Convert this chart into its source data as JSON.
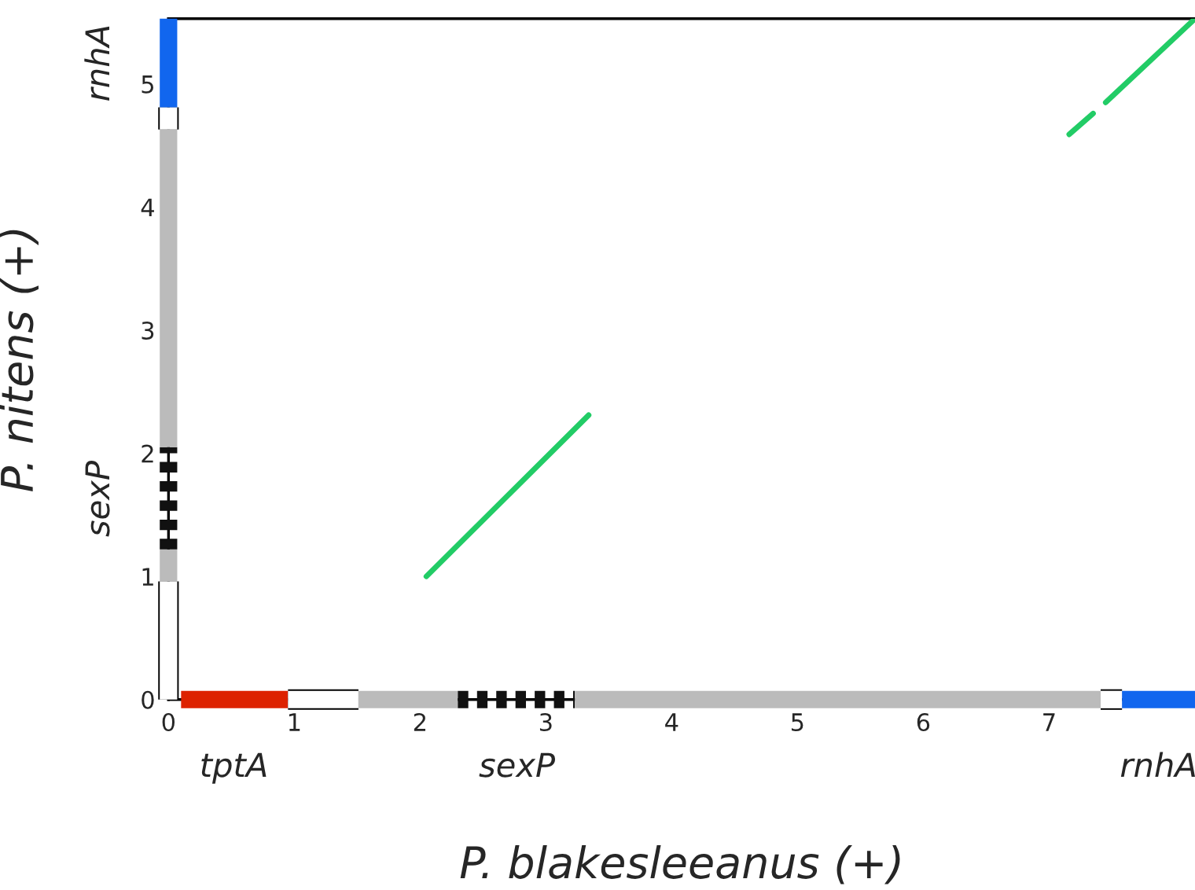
{
  "chart_data": {
    "type": "line",
    "xlabel": "P. blakesleeanus (+)",
    "ylabel": "P. nitens (+)",
    "xlim": [
      0,
      8.16
    ],
    "ylim": [
      0,
      5.53
    ],
    "xticks": [
      0,
      1,
      2,
      3,
      4,
      5,
      6,
      7
    ],
    "yticks": [
      0,
      1,
      2,
      3,
      4,
      5
    ],
    "grid": false,
    "legend": false,
    "series": [
      {
        "color": "#22cc66",
        "x": [
          2.05,
          3.34
        ],
        "values": [
          1.0,
          2.31
        ]
      },
      {
        "color": "#22cc66",
        "x": [
          7.16,
          7.35
        ],
        "values": [
          4.59,
          4.76
        ]
      },
      {
        "color": "#22cc66",
        "x": [
          7.45,
          8.16
        ],
        "values": [
          4.85,
          5.53
        ]
      },
      {
        "color": "#dd2200",
        "x": [
          0.1,
          0.95
        ],
        "values": [
          0,
          0
        ]
      },
      {
        "color": "#ffffff",
        "x": [
          0.95,
          1.51
        ],
        "values": [
          0,
          0
        ]
      },
      {
        "color": "#bbbbbb",
        "x": [
          1.51,
          2.3
        ],
        "values": [
          0,
          0
        ]
      },
      {
        "color": "#111111",
        "x": [
          2.3,
          3.23
        ],
        "values": [
          0,
          0
        ],
        "line_style": "dashed"
      },
      {
        "color": "#bbbbbb",
        "x": [
          3.23,
          7.41
        ],
        "values": [
          0,
          0
        ]
      },
      {
        "color": "#ffffff",
        "x": [
          7.41,
          7.58
        ],
        "values": [
          0,
          0
        ]
      },
      {
        "color": "#1166ee",
        "x": [
          7.58,
          8.16
        ],
        "values": [
          0,
          0
        ]
      },
      {
        "color": "#ffffff",
        "x": [
          0,
          0
        ],
        "values": [
          0,
          0.96
        ]
      },
      {
        "color": "#bbbbbb",
        "x": [
          0,
          0
        ],
        "values": [
          0.96,
          1.22
        ]
      },
      {
        "color": "#111111",
        "x": [
          0,
          0
        ],
        "values": [
          1.22,
          2.05
        ],
        "line_style": "dashed"
      },
      {
        "color": "#bbbbbb",
        "x": [
          0,
          0
        ],
        "values": [
          2.05,
          4.63
        ]
      },
      {
        "color": "#ffffff",
        "x": [
          0,
          0
        ],
        "values": [
          4.63,
          4.81
        ]
      },
      {
        "color": "#1166ee",
        "x": [
          0,
          0
        ],
        "values": [
          4.81,
          5.53
        ]
      }
    ],
    "annotations": [
      {
        "text": "tptA",
        "x": 0.52,
        "y": 0
      },
      {
        "text": "sexP",
        "x": 2.77,
        "y": 0
      },
      {
        "text": "rnhA",
        "x": 7.87,
        "y": 0
      },
      {
        "text": "sexP",
        "x": 0,
        "y": 1.63
      },
      {
        "text": "rnhA",
        "x": 0,
        "y": 5.17
      }
    ]
  }
}
